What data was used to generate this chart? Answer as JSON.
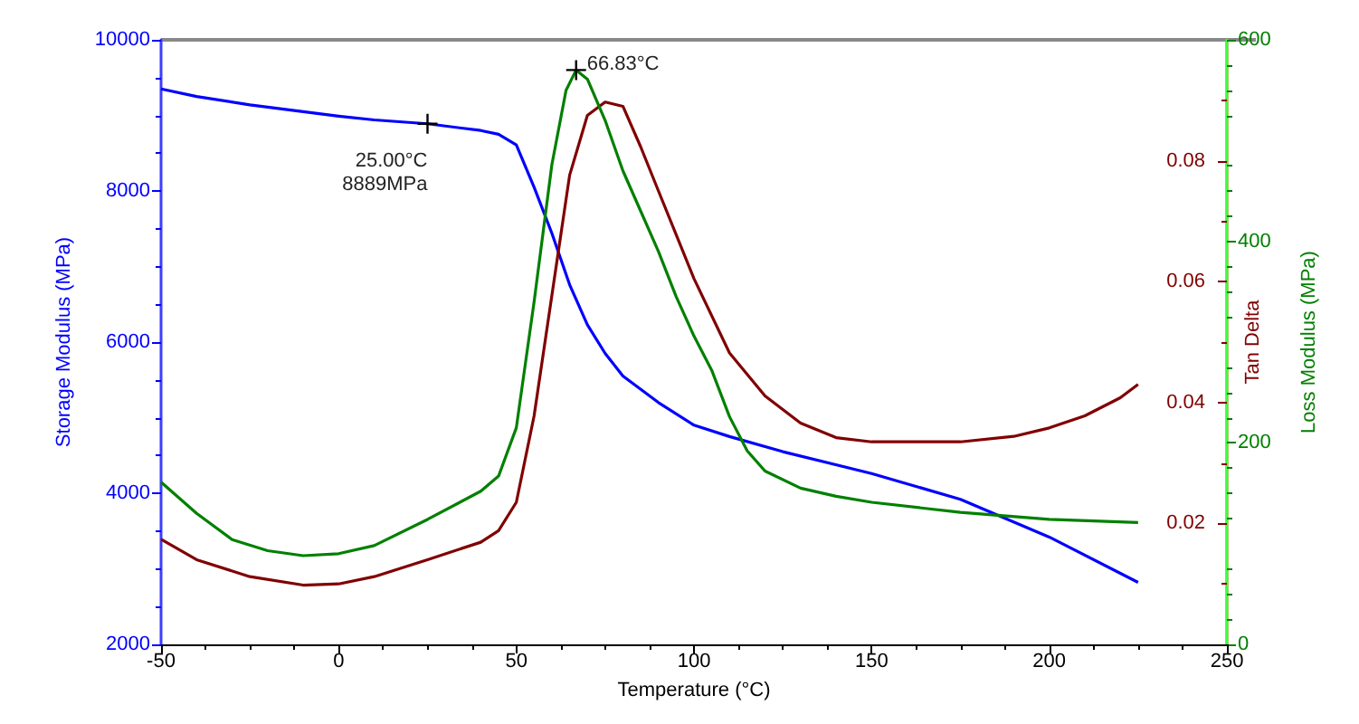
{
  "chart_data": {
    "type": "line",
    "xlabel": "Temperature (°C)",
    "ylabel": "Storage Modulus (MPa)",
    "y2label": "Tan Delta",
    "y3label": "Loss Modulus (MPa)",
    "xlim": [
      -50,
      250
    ],
    "xticks": [
      -50,
      0,
      50,
      100,
      150,
      200,
      250
    ],
    "ylim": [
      2000,
      10000
    ],
    "yticks": [
      2000,
      4000,
      6000,
      8000,
      10000
    ],
    "y2lim": [
      0,
      0.1
    ],
    "y2ticks": [
      0.02,
      0.04,
      0.06,
      0.08
    ],
    "y3lim": [
      0,
      600
    ],
    "y3ticks": [
      0,
      200,
      400,
      600
    ],
    "grid": false,
    "marker": "none",
    "line_style": "solid",
    "series": [
      {
        "color": "#0000ff",
        "x": [
          -50,
          -40,
          -25,
          -10,
          0,
          10,
          25,
          40,
          45,
          50,
          55,
          60,
          65,
          70,
          75,
          80,
          90,
          100,
          110,
          125,
          150,
          175,
          200,
          225
        ],
        "values": [
          9350,
          9250,
          9140,
          9050,
          8990,
          8940,
          8889,
          8800,
          8750,
          8610,
          8050,
          7440,
          6760,
          6230,
          5850,
          5550,
          5200,
          4900,
          4750,
          4550,
          4260,
          3920,
          3420,
          2820
        ]
      },
      {
        "color": "#800000",
        "axis": "y2",
        "x": [
          -50,
          -40,
          -25,
          -10,
          0,
          10,
          25,
          40,
          45,
          50,
          55,
          60,
          65,
          70,
          75,
          80,
          85,
          90,
          100,
          110,
          120,
          130,
          140,
          150,
          175,
          190,
          200,
          210,
          220,
          225
        ],
        "values": [
          0.0174,
          0.014,
          0.0112,
          0.0098,
          0.01,
          0.0112,
          0.014,
          0.0169,
          0.0188,
          0.0235,
          0.0378,
          0.0577,
          0.0776,
          0.0875,
          0.0897,
          0.089,
          0.0823,
          0.075,
          0.0605,
          0.0482,
          0.0411,
          0.0366,
          0.0342,
          0.0335,
          0.0335,
          0.0344,
          0.0358,
          0.0378,
          0.0408,
          0.043
        ]
      },
      {
        "color": "#008000",
        "axis": "y3",
        "x": [
          -50,
          -40,
          -30,
          -20,
          -10,
          0,
          10,
          25,
          40,
          45,
          50,
          55,
          60,
          64,
          66.83,
          70,
          75,
          80,
          85,
          90,
          95,
          100,
          105,
          110,
          115,
          120,
          130,
          140,
          150,
          175,
          200,
          225
        ],
        "values": [
          161,
          130,
          104,
          93,
          88,
          90,
          98,
          124,
          152,
          167,
          215,
          340,
          476,
          550,
          570,
          561,
          520,
          470,
          430,
          390,
          345,
          306,
          272,
          226,
          192,
          172,
          155,
          147,
          141,
          131,
          124,
          121
        ]
      }
    ],
    "annotations": [
      {
        "text": "25.00°C\n8889MPa",
        "x": 25,
        "y": 8889
      },
      {
        "text": "66.83°C",
        "x": 66.83
      }
    ]
  }
}
